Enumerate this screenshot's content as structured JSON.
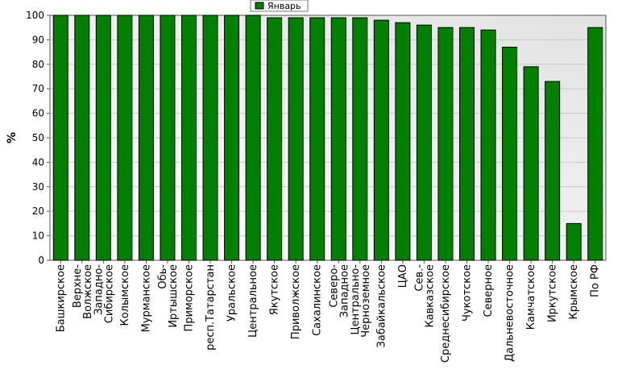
{
  "chart_data": {
    "type": "bar",
    "title": "",
    "xlabel": "",
    "ylabel": "%",
    "ylim": [
      0,
      100
    ],
    "yticks": [
      0,
      10,
      20,
      30,
      40,
      50,
      60,
      70,
      80,
      90,
      100
    ],
    "grid": true,
    "legend_position": "top-center",
    "categories": [
      "Башкирское",
      "Верхне-Волжское",
      "Западно-Сибирское",
      "Колымское",
      "Мурманское",
      "Обь-Иртышское",
      "Приморское",
      "респ.Татарстан",
      "Уральское",
      "Центральное",
      "Якутское",
      "Приволжское",
      "Сахалинское",
      "Северо-Западное",
      "Центрально-Черноземное",
      "Забайкальское",
      "ЦАО",
      "Сев.-Кавказское",
      "Среднесибирское",
      "Чукотское",
      "Северное",
      "Дальневосточное",
      "Камчатское",
      "Иркутское",
      "Крымское",
      "По РФ"
    ],
    "series": [
      {
        "name": "Январь",
        "color": "#008000",
        "values": [
          100,
          100,
          100,
          100,
          100,
          100,
          100,
          100,
          100,
          100,
          99,
          99,
          99,
          99,
          99,
          98,
          97,
          96,
          95,
          95,
          94,
          87,
          79,
          73,
          15,
          95
        ]
      }
    ]
  }
}
